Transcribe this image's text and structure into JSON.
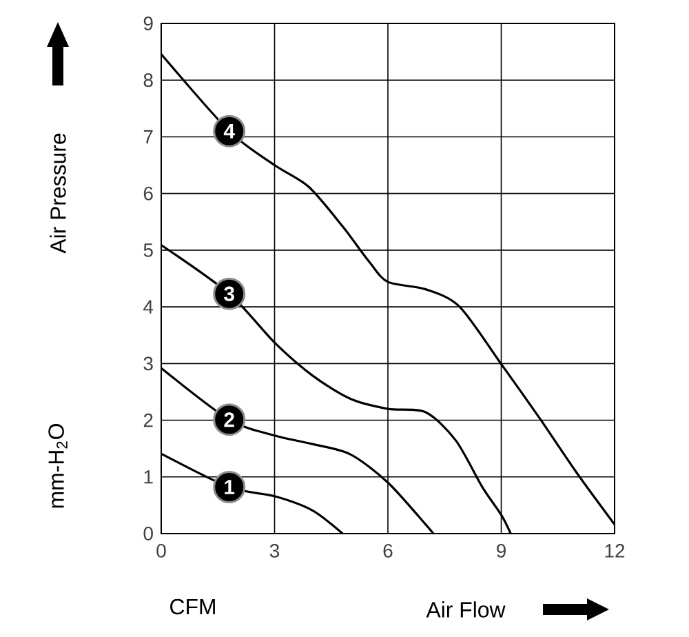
{
  "chart_data": {
    "type": "line",
    "xlabel": "Air Flow",
    "ylabel": "Air Pressure",
    "annotations": [
      "CFM",
      "mm-H$_{2}$O"
    ],
    "xlim": [
      0,
      12
    ],
    "xticks": [
      0,
      3,
      6,
      9,
      12
    ],
    "ylim": [
      0,
      9
    ],
    "yticks": [
      0,
      1,
      2,
      3,
      4,
      5,
      6,
      7,
      8,
      9
    ],
    "grid": true,
    "legend": "left",
    "marker": "none",
    "line_style": "solid",
    "series": [
      {
        "name": "1",
        "color": "#000000",
        "x": [
          0,
          1.8,
          3,
          4,
          4.8
        ],
        "values": [
          1.41,
          0.82,
          0.66,
          0.41,
          0
        ]
      },
      {
        "name": "2",
        "color": "#000000",
        "x": [
          0,
          1.8,
          3,
          4,
          5,
          6,
          7,
          7.2
        ],
        "values": [
          2.92,
          2.01,
          1.73,
          1.58,
          1.4,
          0.9,
          0.16,
          0
        ]
      },
      {
        "name": "3",
        "color": "#000000",
        "x": [
          0,
          1.8,
          3,
          4,
          5,
          6,
          7,
          7.8,
          8.5,
          9,
          9.25
        ],
        "values": [
          5.09,
          4.23,
          3.37,
          2.79,
          2.38,
          2.2,
          2.14,
          1.64,
          0.82,
          0.33,
          0
        ]
      },
      {
        "name": "4",
        "color": "#000000",
        "x": [
          0,
          1.8,
          3,
          3.9,
          4.8,
          5.5,
          6,
          7,
          7.9,
          9,
          10,
          11,
          12
        ],
        "values": [
          8.46,
          7.1,
          6.5,
          6.12,
          5.42,
          4.8,
          4.44,
          4.31,
          4.0,
          2.99,
          2.05,
          1.07,
          0.16
        ]
      }
    ]
  }
}
